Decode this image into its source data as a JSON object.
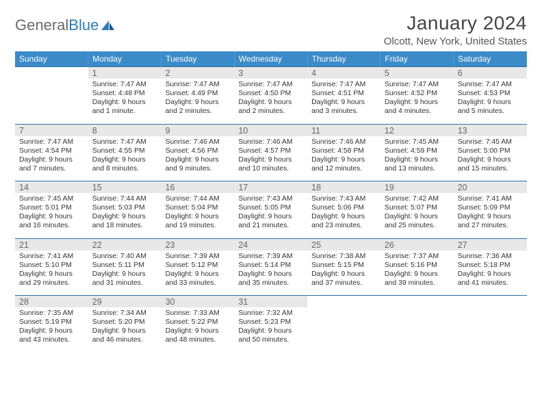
{
  "logo": {
    "text1": "General",
    "text2": "Blue"
  },
  "title": "January 2024",
  "location": "Olcott, New York, United States",
  "headers": [
    "Sunday",
    "Monday",
    "Tuesday",
    "Wednesday",
    "Thursday",
    "Friday",
    "Saturday"
  ],
  "colors": {
    "header_bg": "#3b8bc9",
    "header_text": "#ffffff",
    "row_border": "#2b6fa8",
    "daynum_bg": "#e8e8e8",
    "logo_gray": "#6b6b6b",
    "logo_blue": "#2b7cc0"
  },
  "weeks": [
    [
      null,
      {
        "n": "1",
        "sr": "7:47 AM",
        "ss": "4:48 PM",
        "dl": "9 hours and 1 minute."
      },
      {
        "n": "2",
        "sr": "7:47 AM",
        "ss": "4:49 PM",
        "dl": "9 hours and 2 minutes."
      },
      {
        "n": "3",
        "sr": "7:47 AM",
        "ss": "4:50 PM",
        "dl": "9 hours and 2 minutes."
      },
      {
        "n": "4",
        "sr": "7:47 AM",
        "ss": "4:51 PM",
        "dl": "9 hours and 3 minutes."
      },
      {
        "n": "5",
        "sr": "7:47 AM",
        "ss": "4:52 PM",
        "dl": "9 hours and 4 minutes."
      },
      {
        "n": "6",
        "sr": "7:47 AM",
        "ss": "4:53 PM",
        "dl": "9 hours and 5 minutes."
      }
    ],
    [
      {
        "n": "7",
        "sr": "7:47 AM",
        "ss": "4:54 PM",
        "dl": "9 hours and 7 minutes."
      },
      {
        "n": "8",
        "sr": "7:47 AM",
        "ss": "4:55 PM",
        "dl": "9 hours and 8 minutes."
      },
      {
        "n": "9",
        "sr": "7:46 AM",
        "ss": "4:56 PM",
        "dl": "9 hours and 9 minutes."
      },
      {
        "n": "10",
        "sr": "7:46 AM",
        "ss": "4:57 PM",
        "dl": "9 hours and 10 minutes."
      },
      {
        "n": "11",
        "sr": "7:46 AM",
        "ss": "4:58 PM",
        "dl": "9 hours and 12 minutes."
      },
      {
        "n": "12",
        "sr": "7:45 AM",
        "ss": "4:59 PM",
        "dl": "9 hours and 13 minutes."
      },
      {
        "n": "13",
        "sr": "7:45 AM",
        "ss": "5:00 PM",
        "dl": "9 hours and 15 minutes."
      }
    ],
    [
      {
        "n": "14",
        "sr": "7:45 AM",
        "ss": "5:01 PM",
        "dl": "9 hours and 16 minutes."
      },
      {
        "n": "15",
        "sr": "7:44 AM",
        "ss": "5:03 PM",
        "dl": "9 hours and 18 minutes."
      },
      {
        "n": "16",
        "sr": "7:44 AM",
        "ss": "5:04 PM",
        "dl": "9 hours and 19 minutes."
      },
      {
        "n": "17",
        "sr": "7:43 AM",
        "ss": "5:05 PM",
        "dl": "9 hours and 21 minutes."
      },
      {
        "n": "18",
        "sr": "7:43 AM",
        "ss": "5:06 PM",
        "dl": "9 hours and 23 minutes."
      },
      {
        "n": "19",
        "sr": "7:42 AM",
        "ss": "5:07 PM",
        "dl": "9 hours and 25 minutes."
      },
      {
        "n": "20",
        "sr": "7:41 AM",
        "ss": "5:09 PM",
        "dl": "9 hours and 27 minutes."
      }
    ],
    [
      {
        "n": "21",
        "sr": "7:41 AM",
        "ss": "5:10 PM",
        "dl": "9 hours and 29 minutes."
      },
      {
        "n": "22",
        "sr": "7:40 AM",
        "ss": "5:11 PM",
        "dl": "9 hours and 31 minutes."
      },
      {
        "n": "23",
        "sr": "7:39 AM",
        "ss": "5:12 PM",
        "dl": "9 hours and 33 minutes."
      },
      {
        "n": "24",
        "sr": "7:39 AM",
        "ss": "5:14 PM",
        "dl": "9 hours and 35 minutes."
      },
      {
        "n": "25",
        "sr": "7:38 AM",
        "ss": "5:15 PM",
        "dl": "9 hours and 37 minutes."
      },
      {
        "n": "26",
        "sr": "7:37 AM",
        "ss": "5:16 PM",
        "dl": "9 hours and 39 minutes."
      },
      {
        "n": "27",
        "sr": "7:36 AM",
        "ss": "5:18 PM",
        "dl": "9 hours and 41 minutes."
      }
    ],
    [
      {
        "n": "28",
        "sr": "7:35 AM",
        "ss": "5:19 PM",
        "dl": "9 hours and 43 minutes."
      },
      {
        "n": "29",
        "sr": "7:34 AM",
        "ss": "5:20 PM",
        "dl": "9 hours and 46 minutes."
      },
      {
        "n": "30",
        "sr": "7:33 AM",
        "ss": "5:22 PM",
        "dl": "9 hours and 48 minutes."
      },
      {
        "n": "31",
        "sr": "7:32 AM",
        "ss": "5:23 PM",
        "dl": "9 hours and 50 minutes."
      },
      null,
      null,
      null
    ]
  ],
  "labels": {
    "sunrise": "Sunrise:",
    "sunset": "Sunset:",
    "daylight": "Daylight:"
  }
}
